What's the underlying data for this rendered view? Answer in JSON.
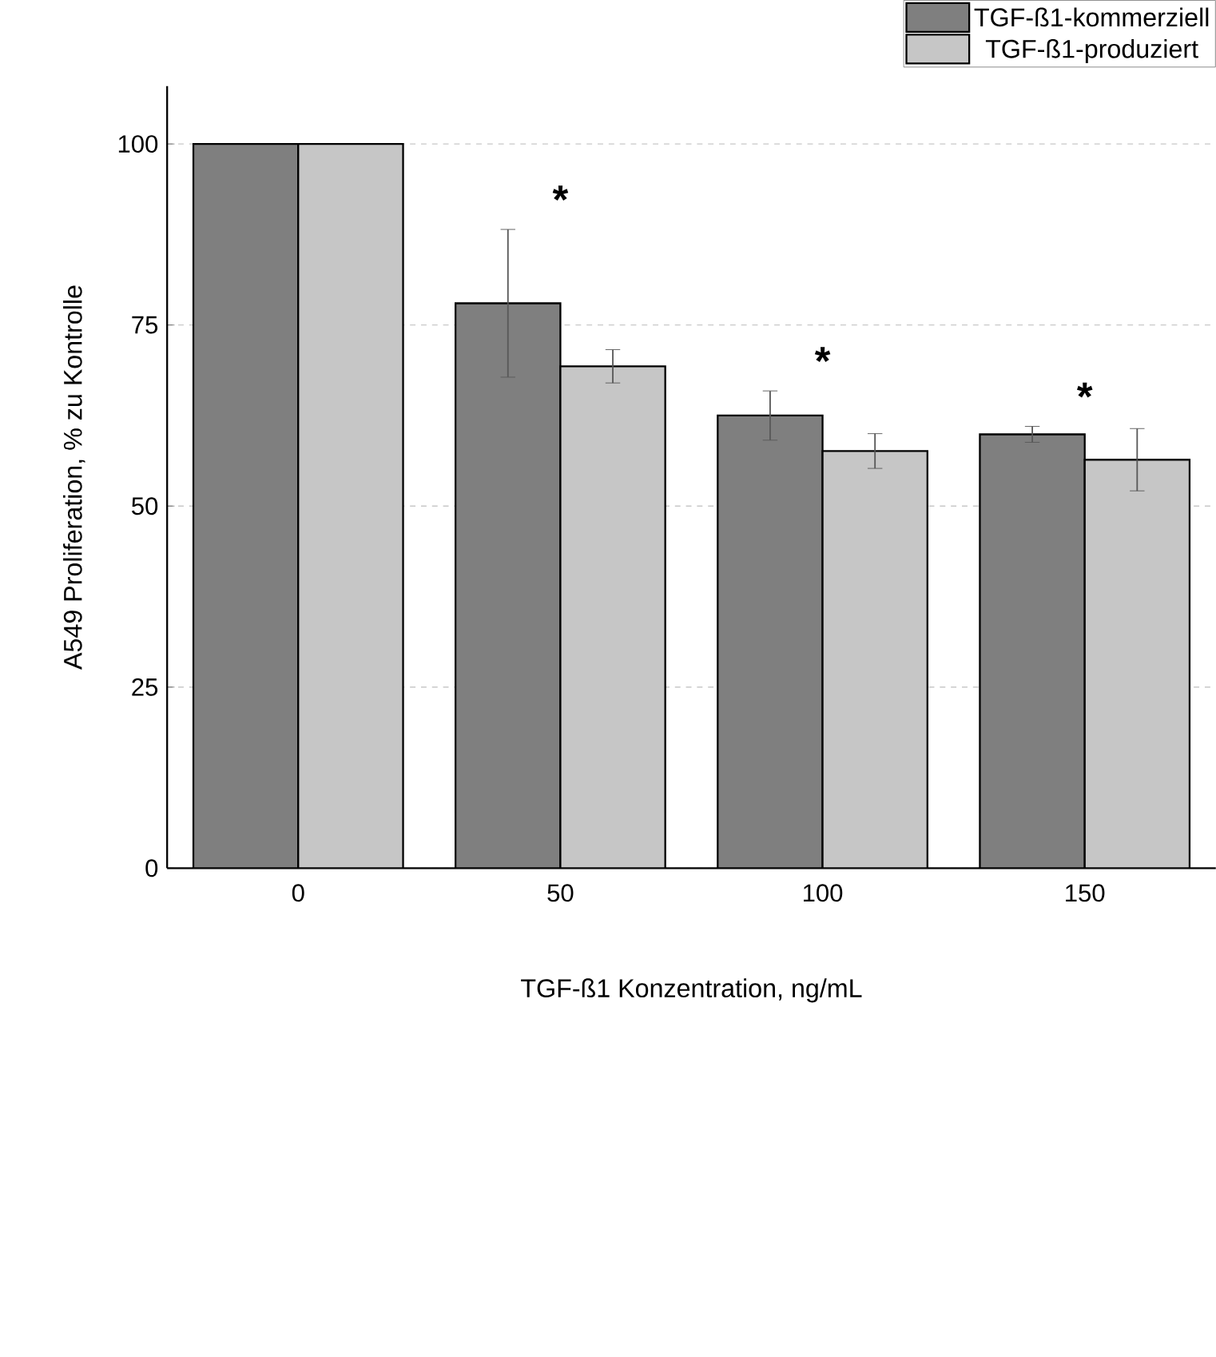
{
  "chart_data": {
    "type": "bar",
    "xlabel": "TGF-ß1 Konzentration, ng/mL",
    "ylabel": "A549 Proliferation, % zu Kontrolle",
    "categories": [
      "0",
      "50",
      "100",
      "150"
    ],
    "series": [
      {
        "name": "TGF-ß1-kommerziell",
        "color": "#7f7f7f",
        "values": [
          100,
          78,
          62.5,
          59.9
        ],
        "errors": [
          null,
          10.2,
          3.4,
          1.1
        ]
      },
      {
        "name": "TGF-ß1-produziert",
        "color": "#c6c6c6",
        "values": [
          100,
          69.3,
          57.6,
          56.4
        ],
        "errors": [
          null,
          2.3,
          2.4,
          4.3
        ]
      }
    ],
    "ylim": [
      0,
      108
    ],
    "yticks": [
      0,
      25,
      50,
      75,
      100
    ],
    "grid": "y",
    "legend": "top right",
    "annotations": [
      "*",
      "*",
      "*"
    ]
  }
}
